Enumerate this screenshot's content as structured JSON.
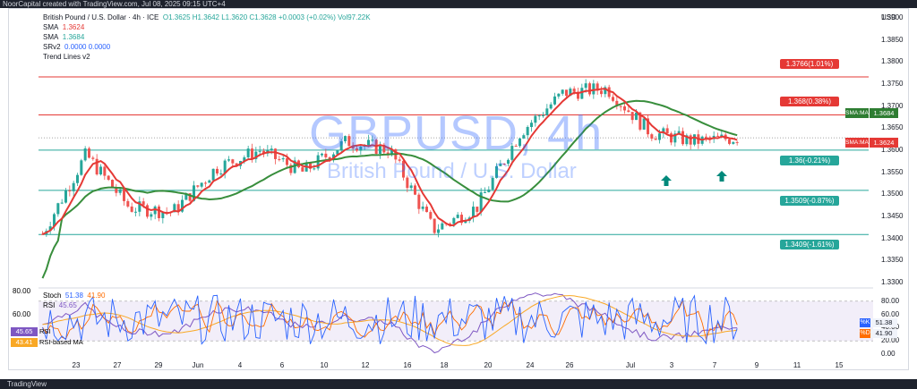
{
  "header": {
    "created_by": "NoorCapital created with TradingView.com, Jul 08, 2025 09:15 UTC+4"
  },
  "legend": {
    "symbol_line": "British Pound / U.S. Dollar · 4h · ICE",
    "ohlc": "O1.3625  H1.3642  L1.3620  C1.3628  +0.0003 (+0.02%)  Vol97.22K",
    "sma1_name": "SMA",
    "sma1_value": "1.3624",
    "sma2_name": "SMA",
    "sma2_value": "1.3684",
    "srv2_name": "SRv2",
    "srv2_value": "0.0000  0.0000",
    "trend": "Trend Lines v2"
  },
  "watermark": {
    "symbol": "GBPUSD, 4h",
    "description": "British Pound / U.S. Dollar"
  },
  "currency": "USD",
  "price_axis": [
    "1.3900",
    "1.3850",
    "1.3800",
    "1.3750",
    "1.3700",
    "1.3650",
    "1.3600",
    "1.3550",
    "1.3500",
    "1.3450",
    "1.3400",
    "1.3350",
    "1.3300"
  ],
  "price_labels": [
    {
      "text": "1.3766(1.01%)",
      "color": "#e53935"
    },
    {
      "text": "1.368(0.38%)",
      "color": "#e53935"
    },
    {
      "text": "1.36(-0.21%)",
      "color": "#26a69a"
    },
    {
      "text": "1.3509(-0.87%)",
      "color": "#26a69a"
    },
    {
      "text": "1.3409(-1.61%)",
      "color": "#26a69a"
    }
  ],
  "tags": [
    {
      "label": "SMA:MA",
      "value": "1.3684",
      "color": "#2e7d32"
    },
    {
      "label": "SMA:MA",
      "value": "1.3624",
      "color": "#e53935"
    }
  ],
  "oscillator": {
    "stoch_label": "Stoch",
    "stoch_k": "51.38",
    "stoch_d": "41.90",
    "rsi_label": "RSI",
    "rsi_value": "45.65",
    "rsi_ma_value": "43.41",
    "rsi_ma_label": "RSI-based MA",
    "axis": [
      "80.00",
      "60.00",
      "40.00",
      "20.00",
      "0.00"
    ],
    "k_label": "%K",
    "d_label": "%D"
  },
  "x_axis": [
    "23",
    "27",
    "29",
    "Jun",
    "4",
    "6",
    "10",
    "12",
    "16",
    "18",
    "20",
    "24",
    "26",
    "Jul",
    "3",
    "7",
    "9",
    "11",
    "15"
  ],
  "footer": {
    "brand": "TradingView"
  },
  "colors": {
    "bull": "#26a69a",
    "bear": "#ef5350",
    "sma_fast": "#e53935",
    "sma_slow": "#388e3c",
    "stoch_k": "#2962ff",
    "stoch_d": "#ff6d00",
    "rsi": "#7e57c2"
  },
  "chart_data": {
    "type": "candlestick",
    "timeframe": "4h",
    "close_path": [
      [
        "23",
        1.341
      ],
      [
        "27",
        1.359
      ],
      [
        "29",
        1.347
      ],
      [
        "Jun",
        1.346
      ],
      [
        "4",
        1.356
      ],
      [
        "6",
        1.36
      ],
      [
        "10",
        1.355
      ],
      [
        "12",
        1.362
      ],
      [
        "16",
        1.36
      ],
      [
        "18",
        1.342
      ],
      [
        "20",
        1.347
      ],
      [
        "24",
        1.364
      ],
      [
        "26",
        1.373
      ],
      [
        "Jul",
        1.374
      ],
      [
        "3",
        1.364
      ],
      [
        "7",
        1.362
      ],
      [
        "8",
        1.3628
      ]
    ],
    "horizontal_levels": [
      1.3766,
      1.368,
      1.36,
      1.3509,
      1.3409
    ],
    "annotations": [
      "up-arrow",
      "up-arrow"
    ],
    "ylim": [
      1.33,
      1.392
    ]
  }
}
